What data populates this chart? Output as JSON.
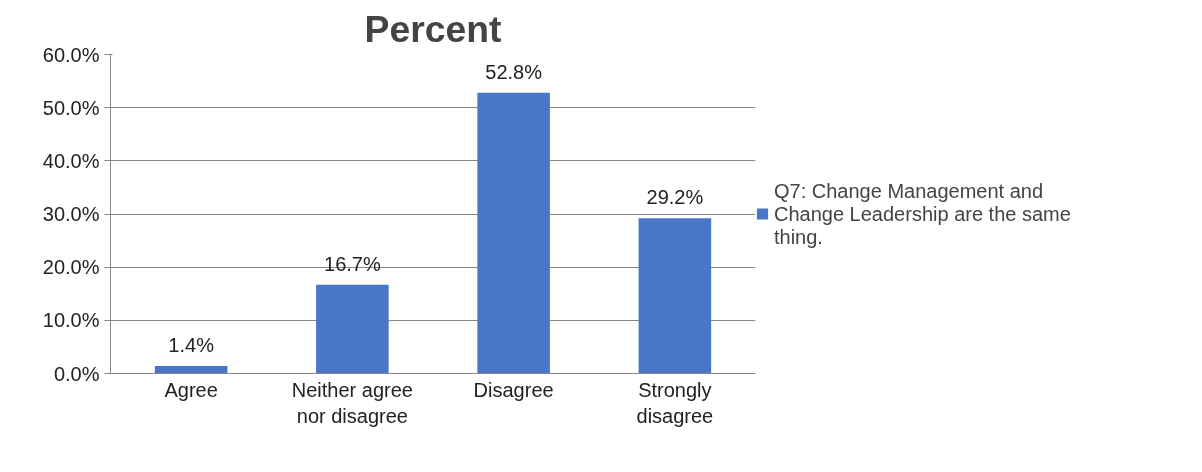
{
  "chart_data": {
    "type": "bar",
    "title": "Percent",
    "categories": [
      "Agree",
      "Neither agree nor disagree",
      "Disagree",
      "Strongly disagree"
    ],
    "series": [
      {
        "name": "Q7: Change Management and Change Leadership are the same thing.",
        "color": "#4a76c8",
        "values": [
          1.4,
          16.7,
          52.8,
          29.2
        ]
      }
    ],
    "value_labels": [
      "1.4%",
      "16.7%",
      "52.8%",
      "29.2%"
    ],
    "ylim": [
      0,
      60
    ],
    "yticks": [
      {
        "value": 0,
        "label": "0.0%"
      },
      {
        "value": 10,
        "label": "10.0%"
      },
      {
        "value": 20,
        "label": "20.0%"
      },
      {
        "value": 30,
        "label": "30.0%"
      },
      {
        "value": 40,
        "label": "40.0%"
      },
      {
        "value": 50,
        "label": "50.0%"
      },
      {
        "value": 60,
        "label": "60.0%"
      }
    ],
    "grid": "y",
    "legend": "right"
  }
}
